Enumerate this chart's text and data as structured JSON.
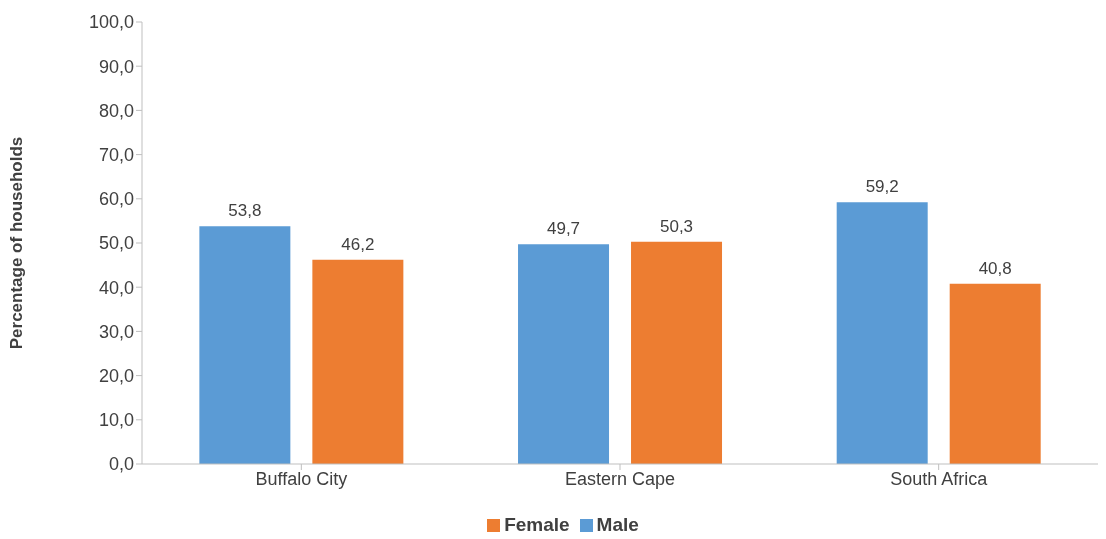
{
  "chart_data": {
    "type": "bar",
    "ylabel": "Percentage of households",
    "categories": [
      "Buffalo City",
      "Eastern Cape",
      "South Africa"
    ],
    "series": [
      {
        "name": "Male",
        "color": "#5b9bd5",
        "values": [
          53.8,
          49.7,
          59.2
        ],
        "value_labels": [
          "53,8",
          "49,7",
          "59,2"
        ]
      },
      {
        "name": "Female",
        "color": "#ed7d31",
        "values": [
          46.2,
          50.3,
          40.8
        ],
        "value_labels": [
          "46,2",
          "50,3",
          "40,8"
        ]
      }
    ],
    "ylim": [
      0,
      100
    ],
    "yticks": [
      {
        "value": 0,
        "label": "0,0"
      },
      {
        "value": 10,
        "label": "10,0"
      },
      {
        "value": 20,
        "label": "20,0"
      },
      {
        "value": 30,
        "label": "30,0"
      },
      {
        "value": 40,
        "label": "40,0"
      },
      {
        "value": 50,
        "label": "50,0"
      },
      {
        "value": 60,
        "label": "60,0"
      },
      {
        "value": 70,
        "label": "70,0"
      },
      {
        "value": 80,
        "label": "80,0"
      },
      {
        "value": 90,
        "label": "90,0"
      },
      {
        "value": 100,
        "label": "100,0"
      }
    ],
    "grid": false,
    "legend": "bottom"
  }
}
